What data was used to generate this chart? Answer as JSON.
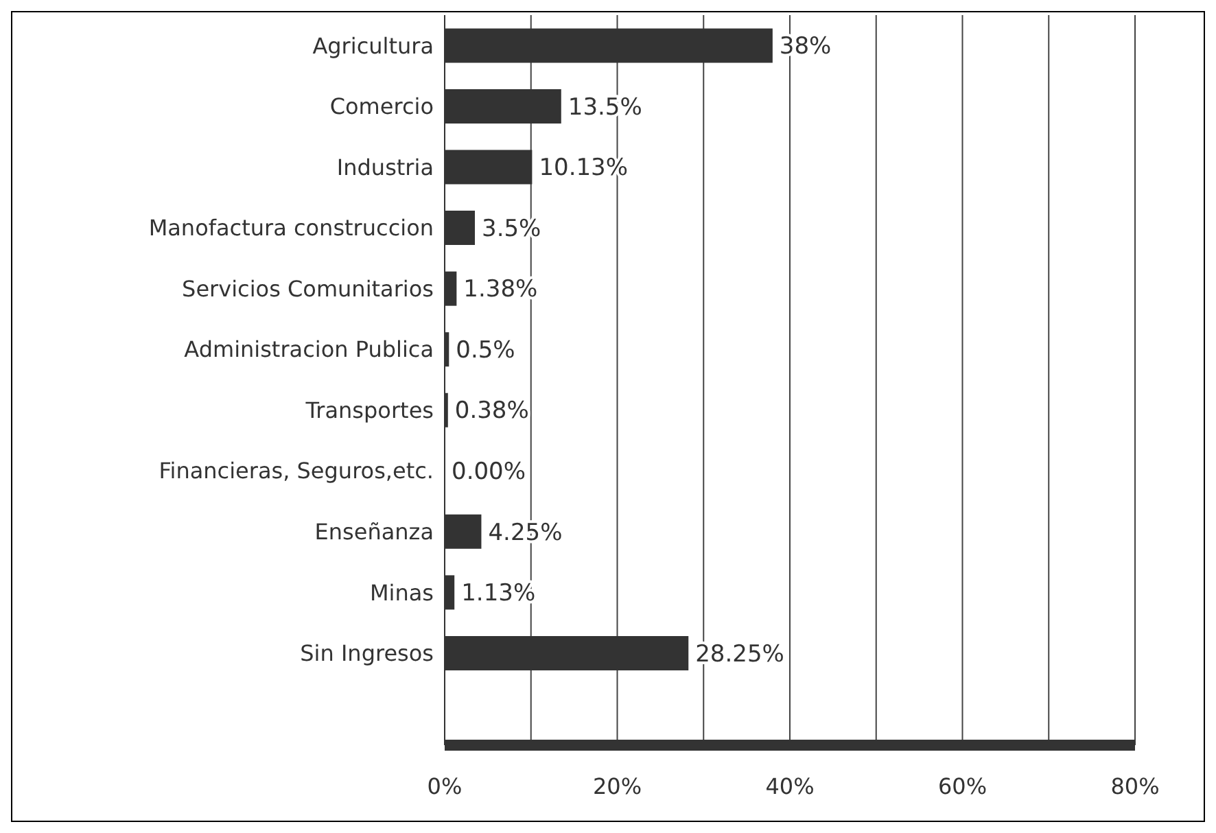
{
  "chart_data": {
    "type": "bar",
    "orientation": "horizontal",
    "categories": [
      "Agricultura",
      "Comercio",
      "Industria",
      "Manofactura construccion",
      "Servicios Comunitarios",
      "Administracion Publica",
      "Transportes",
      "Financieras, Seguros,etc.",
      "Enseñanza",
      "Minas",
      "Sin Ingresos"
    ],
    "values": [
      38,
      13.5,
      10.13,
      3.5,
      1.38,
      0.5,
      0.38,
      0,
      4.25,
      1.13,
      28.25
    ],
    "value_labels": [
      "38%",
      "13.5%",
      "10.13%",
      "3.5%",
      "1.38%",
      "0.5%",
      "0.38%",
      "0.00%",
      "4.25%",
      "1.13%",
      "28.25%"
    ],
    "color": "#333333",
    "xlim": [
      0,
      80
    ],
    "xticks": [
      {
        "value": 0,
        "label": "0%"
      },
      {
        "value": 10,
        "label": null
      },
      {
        "value": 20,
        "label": "20%"
      },
      {
        "value": 30,
        "label": null
      },
      {
        "value": 40,
        "label": "40%"
      },
      {
        "value": 50,
        "label": null
      },
      {
        "value": 60,
        "label": "60%"
      },
      {
        "value": 70,
        "label": null
      },
      {
        "value": 80,
        "label": "80%"
      }
    ],
    "grid": "x",
    "legend": false
  }
}
